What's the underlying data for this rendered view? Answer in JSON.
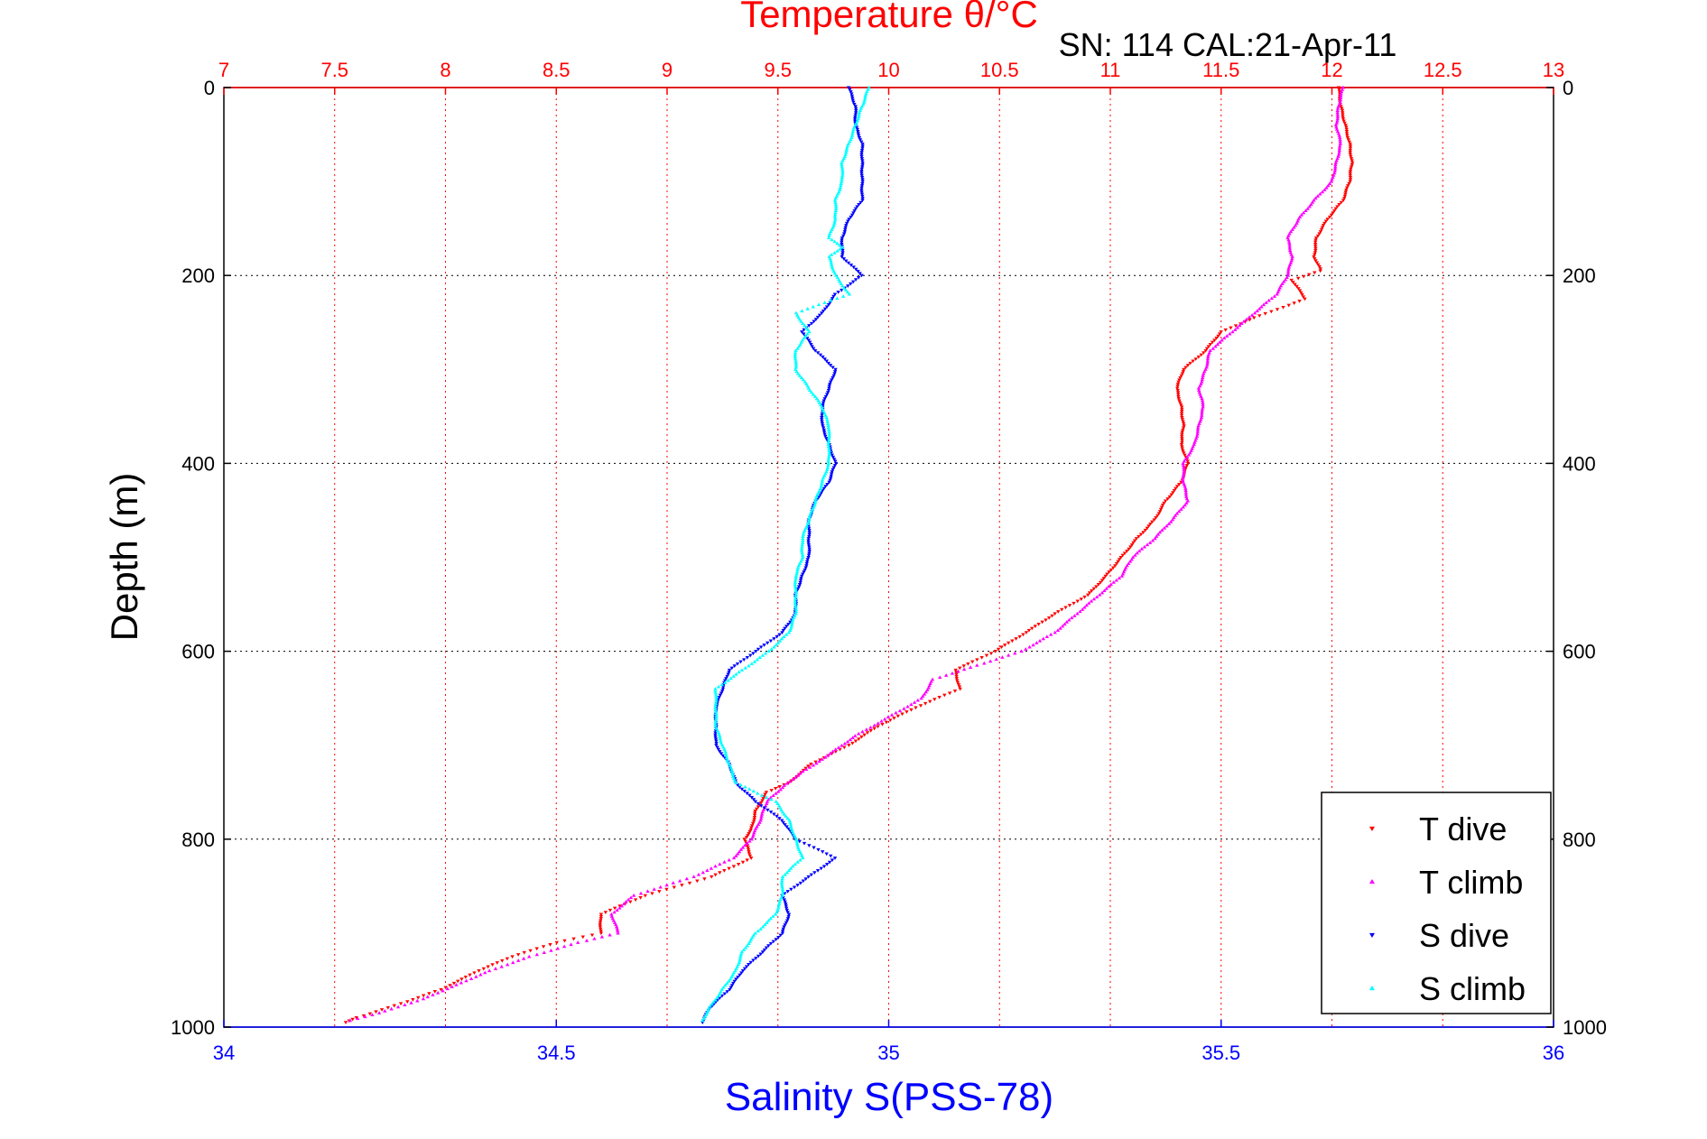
{
  "chart_data": {
    "type": "scatter",
    "title": "Temperature θ/°C",
    "subtitle": "SN: 114  CAL:21-Apr-11",
    "xlabel": "Salinity S(PSS-78)",
    "ylabel": "Depth (m)",
    "xlim_salinity": [
      34,
      36
    ],
    "xlim_temperature": [
      7,
      13
    ],
    "ylim": [
      0,
      1000
    ],
    "y_reversed": true,
    "salinity_ticks": [
      "34",
      "34.5",
      "35",
      "35.5",
      "36"
    ],
    "temperature_ticks": [
      "7",
      "7.5",
      "8",
      "8.5",
      "9",
      "9.5",
      "10",
      "10.5",
      "11",
      "11.5",
      "12",
      "12.5",
      "13"
    ],
    "depth_ticks": [
      "0",
      "200",
      "400",
      "600",
      "800",
      "1000"
    ],
    "grid": true,
    "legend_position": "bottom-right",
    "series": [
      {
        "name": "T dive",
        "axis": "temperature",
        "color": "#ff0000",
        "marker": "triangle-down",
        "points": [
          [
            12.03,
            0
          ],
          [
            12.04,
            20
          ],
          [
            12.06,
            40
          ],
          [
            12.08,
            60
          ],
          [
            12.09,
            80
          ],
          [
            12.08,
            100
          ],
          [
            12.05,
            120
          ],
          [
            11.98,
            140
          ],
          [
            11.93,
            160
          ],
          [
            11.92,
            180
          ],
          [
            11.95,
            195
          ],
          [
            11.82,
            205
          ],
          [
            11.88,
            225
          ],
          [
            11.65,
            245
          ],
          [
            11.5,
            260
          ],
          [
            11.43,
            280
          ],
          [
            11.33,
            300
          ],
          [
            11.3,
            320
          ],
          [
            11.32,
            340
          ],
          [
            11.33,
            360
          ],
          [
            11.32,
            380
          ],
          [
            11.35,
            400
          ],
          [
            11.32,
            420
          ],
          [
            11.25,
            440
          ],
          [
            11.2,
            460
          ],
          [
            11.12,
            480
          ],
          [
            11.05,
            500
          ],
          [
            10.98,
            520
          ],
          [
            10.9,
            540
          ],
          [
            10.75,
            560
          ],
          [
            10.62,
            580
          ],
          [
            10.48,
            600
          ],
          [
            10.3,
            620
          ],
          [
            10.32,
            640
          ],
          [
            10.12,
            660
          ],
          [
            9.95,
            680
          ],
          [
            9.82,
            700
          ],
          [
            9.65,
            720
          ],
          [
            9.55,
            740
          ],
          [
            9.45,
            750
          ],
          [
            9.4,
            770
          ],
          [
            9.38,
            790
          ],
          [
            9.35,
            800
          ],
          [
            9.38,
            820
          ],
          [
            9.2,
            840
          ],
          [
            8.9,
            860
          ],
          [
            8.7,
            880
          ],
          [
            8.7,
            900
          ],
          [
            8.5,
            910
          ],
          [
            8.3,
            925
          ],
          [
            8.15,
            940
          ],
          [
            7.98,
            960
          ],
          [
            7.8,
            975
          ],
          [
            7.6,
            990
          ],
          [
            7.55,
            995
          ]
        ]
      },
      {
        "name": "T climb",
        "axis": "temperature",
        "color": "#ff00ff",
        "marker": "triangle-up",
        "points": [
          [
            12.05,
            0
          ],
          [
            12.03,
            20
          ],
          [
            12.02,
            40
          ],
          [
            12.04,
            60
          ],
          [
            12.02,
            80
          ],
          [
            12.0,
            100
          ],
          [
            11.92,
            120
          ],
          [
            11.85,
            140
          ],
          [
            11.8,
            160
          ],
          [
            11.82,
            180
          ],
          [
            11.8,
            200
          ],
          [
            11.75,
            220
          ],
          [
            11.65,
            240
          ],
          [
            11.55,
            260
          ],
          [
            11.45,
            280
          ],
          [
            11.43,
            300
          ],
          [
            11.4,
            320
          ],
          [
            11.42,
            340
          ],
          [
            11.4,
            360
          ],
          [
            11.38,
            380
          ],
          [
            11.33,
            400
          ],
          [
            11.33,
            420
          ],
          [
            11.35,
            440
          ],
          [
            11.28,
            460
          ],
          [
            11.2,
            480
          ],
          [
            11.1,
            500
          ],
          [
            11.05,
            520
          ],
          [
            10.95,
            540
          ],
          [
            10.85,
            560
          ],
          [
            10.75,
            580
          ],
          [
            10.6,
            600
          ],
          [
            10.4,
            615
          ],
          [
            10.2,
            630
          ],
          [
            10.15,
            650
          ],
          [
            10.0,
            670
          ],
          [
            9.85,
            690
          ],
          [
            9.7,
            715
          ],
          [
            9.6,
            730
          ],
          [
            9.52,
            745
          ],
          [
            9.45,
            760
          ],
          [
            9.42,
            780
          ],
          [
            9.38,
            800
          ],
          [
            9.3,
            820
          ],
          [
            9.12,
            840
          ],
          [
            8.85,
            860
          ],
          [
            8.75,
            880
          ],
          [
            8.78,
            900
          ],
          [
            8.6,
            910
          ],
          [
            8.38,
            925
          ],
          [
            8.2,
            940
          ],
          [
            8.05,
            955
          ],
          [
            7.9,
            970
          ],
          [
            7.7,
            985
          ],
          [
            7.57,
            993
          ]
        ]
      },
      {
        "name": "S dive",
        "axis": "salinity",
        "color": "#0000ff",
        "marker": "triangle-down",
        "points": [
          [
            34.94,
            0
          ],
          [
            34.95,
            20
          ],
          [
            34.95,
            40
          ],
          [
            34.96,
            60
          ],
          [
            34.96,
            80
          ],
          [
            34.96,
            100
          ],
          [
            34.96,
            120
          ],
          [
            34.94,
            140
          ],
          [
            34.93,
            160
          ],
          [
            34.93,
            180
          ],
          [
            34.96,
            200
          ],
          [
            34.92,
            220
          ],
          [
            34.9,
            240
          ],
          [
            34.87,
            260
          ],
          [
            34.89,
            280
          ],
          [
            34.92,
            300
          ],
          [
            34.91,
            320
          ],
          [
            34.9,
            340
          ],
          [
            34.9,
            360
          ],
          [
            34.91,
            380
          ],
          [
            34.92,
            400
          ],
          [
            34.91,
            420
          ],
          [
            34.89,
            440
          ],
          [
            34.88,
            460
          ],
          [
            34.88,
            480
          ],
          [
            34.88,
            500
          ],
          [
            34.87,
            520
          ],
          [
            34.86,
            540
          ],
          [
            34.86,
            560
          ],
          [
            34.84,
            580
          ],
          [
            34.8,
            600
          ],
          [
            34.76,
            620
          ],
          [
            34.75,
            640
          ],
          [
            34.74,
            660
          ],
          [
            34.74,
            680
          ],
          [
            34.74,
            700
          ],
          [
            34.76,
            720
          ],
          [
            34.77,
            740
          ],
          [
            34.8,
            760
          ],
          [
            34.84,
            780
          ],
          [
            34.86,
            800
          ],
          [
            34.92,
            820
          ],
          [
            34.88,
            840
          ],
          [
            34.84,
            860
          ],
          [
            34.85,
            880
          ],
          [
            34.84,
            900
          ],
          [
            34.81,
            920
          ],
          [
            34.78,
            940
          ],
          [
            34.76,
            960
          ],
          [
            34.73,
            980
          ],
          [
            34.72,
            995
          ]
        ]
      },
      {
        "name": "S climb",
        "axis": "salinity",
        "color": "#00ffff",
        "marker": "triangle-up",
        "points": [
          [
            34.97,
            0
          ],
          [
            34.96,
            20
          ],
          [
            34.95,
            40
          ],
          [
            34.94,
            60
          ],
          [
            34.93,
            80
          ],
          [
            34.93,
            100
          ],
          [
            34.92,
            120
          ],
          [
            34.92,
            140
          ],
          [
            34.91,
            160
          ],
          [
            34.93,
            170
          ],
          [
            34.91,
            180
          ],
          [
            34.92,
            200
          ],
          [
            34.94,
            220
          ],
          [
            34.86,
            240
          ],
          [
            34.88,
            260
          ],
          [
            34.86,
            280
          ],
          [
            34.86,
            300
          ],
          [
            34.88,
            320
          ],
          [
            34.9,
            340
          ],
          [
            34.91,
            360
          ],
          [
            34.91,
            380
          ],
          [
            34.91,
            400
          ],
          [
            34.9,
            420
          ],
          [
            34.89,
            440
          ],
          [
            34.88,
            460
          ],
          [
            34.87,
            480
          ],
          [
            34.87,
            500
          ],
          [
            34.86,
            520
          ],
          [
            34.86,
            540
          ],
          [
            34.86,
            560
          ],
          [
            34.85,
            580
          ],
          [
            34.82,
            600
          ],
          [
            34.78,
            620
          ],
          [
            34.74,
            640
          ],
          [
            34.74,
            660
          ],
          [
            34.74,
            680
          ],
          [
            34.75,
            700
          ],
          [
            34.76,
            720
          ],
          [
            34.77,
            740
          ],
          [
            34.83,
            760
          ],
          [
            34.85,
            780
          ],
          [
            34.86,
            800
          ],
          [
            34.87,
            820
          ],
          [
            34.84,
            840
          ],
          [
            34.84,
            860
          ],
          [
            34.83,
            880
          ],
          [
            34.8,
            900
          ],
          [
            34.78,
            920
          ],
          [
            34.77,
            940
          ],
          [
            34.75,
            960
          ],
          [
            34.73,
            980
          ],
          [
            34.72,
            993
          ]
        ]
      }
    ]
  }
}
